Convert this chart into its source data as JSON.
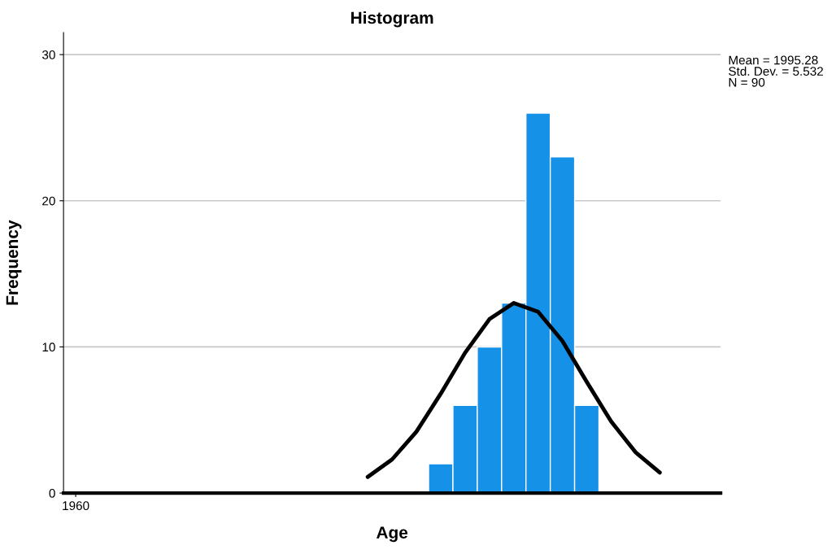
{
  "chart_data": {
    "type": "bar",
    "title": "Histogram",
    "xlabel": "Age",
    "ylabel": "Frequency",
    "categories": [
      "1960",
      null,
      null,
      null,
      null,
      null,
      null,
      null,
      null,
      null,
      null,
      null,
      null,
      null,
      null,
      null,
      null,
      null,
      null,
      null,
      null,
      null,
      null,
      null,
      null,
      null,
      null
    ],
    "values": [
      null,
      null,
      null,
      null,
      null,
      null,
      null,
      null,
      null,
      null,
      null,
      null,
      null,
      null,
      null,
      2,
      6,
      10,
      13,
      26,
      23,
      6,
      null,
      null,
      null,
      null,
      null
    ],
    "color": "#1591e8",
    "series": [
      {
        "type": "line",
        "color": "#000000",
        "values": [
          null,
          null,
          null,
          null,
          null,
          null,
          null,
          null,
          null,
          null,
          null,
          null,
          1.1,
          2.3,
          4.2,
          6.8,
          9.6,
          11.9,
          13.0,
          12.4,
          10.4,
          7.6,
          4.9,
          2.8,
          1.4,
          null,
          null
        ]
      }
    ],
    "ylim": [
      0,
      31.5
    ],
    "yticks": [
      0,
      10,
      20,
      30
    ],
    "grid": "y",
    "annotations": [
      "Mean = 1995.28\nStd. Dev. = 5.532\nN = 90"
    ]
  }
}
